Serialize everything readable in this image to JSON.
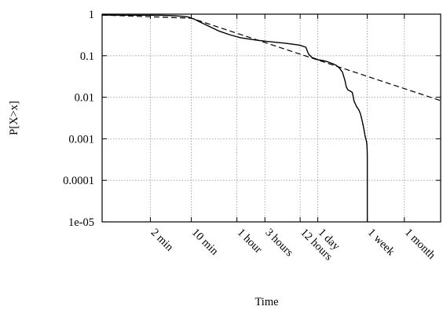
{
  "chart_data": {
    "type": "line",
    "title": "",
    "xlabel": "Time",
    "ylabel": "P[X>x]",
    "xscale": "log",
    "yscale": "log",
    "x_unit": "minutes",
    "xlim": [
      0.3,
      180000
    ],
    "ylim": [
      1e-05,
      1
    ],
    "grid": true,
    "legend": "none",
    "y_ticks": [
      {
        "value": 1,
        "label": "1"
      },
      {
        "value": 0.1,
        "label": "0.1"
      },
      {
        "value": 0.01,
        "label": "0.01"
      },
      {
        "value": 0.001,
        "label": "0.001"
      },
      {
        "value": 0.0001,
        "label": "0.0001"
      },
      {
        "value": 1e-05,
        "label": "1e-05"
      }
    ],
    "x_ticks": [
      {
        "value": 2,
        "label": "2 min"
      },
      {
        "value": 10,
        "label": "10 min"
      },
      {
        "value": 60,
        "label": "1 hour"
      },
      {
        "value": 180,
        "label": "3 hours"
      },
      {
        "value": 720,
        "label": "12 hours"
      },
      {
        "value": 1440,
        "label": "1 day"
      },
      {
        "value": 10080,
        "label": "1 week"
      },
      {
        "value": 43200,
        "label": "1 month"
      }
    ],
    "series": [
      {
        "style": "solid",
        "color": "#000000",
        "x": [
          0.3,
          3,
          5,
          7,
          9,
          11,
          15,
          22,
          30,
          45,
          70,
          120,
          200,
          400,
          700,
          900,
          1000,
          1150,
          1300,
          1450,
          1600,
          1900,
          2200,
          2600,
          3000,
          3400,
          3800,
          4200,
          4400,
          4700,
          5200,
          5600,
          6000,
          6600,
          7200,
          7700,
          8100,
          8500,
          8900,
          9200,
          9500,
          9700,
          9850,
          10000,
          10080,
          10080
        ],
        "y": [
          0.95,
          0.94,
          0.92,
          0.89,
          0.85,
          0.77,
          0.62,
          0.48,
          0.39,
          0.32,
          0.27,
          0.24,
          0.22,
          0.2,
          0.18,
          0.16,
          0.11,
          0.09,
          0.085,
          0.08,
          0.078,
          0.075,
          0.07,
          0.064,
          0.058,
          0.05,
          0.04,
          0.025,
          0.018,
          0.015,
          0.014,
          0.013,
          0.008,
          0.006,
          0.005,
          0.004,
          0.003,
          0.0022,
          0.0016,
          0.0012,
          0.001,
          0.0009,
          0.0008,
          0.0006,
          0.0004,
          1e-05
        ]
      },
      {
        "style": "dashed",
        "color": "#000000",
        "x": [
          0.3,
          10,
          180000
        ],
        "y": [
          0.95,
          0.8,
          0.0083
        ]
      }
    ]
  }
}
